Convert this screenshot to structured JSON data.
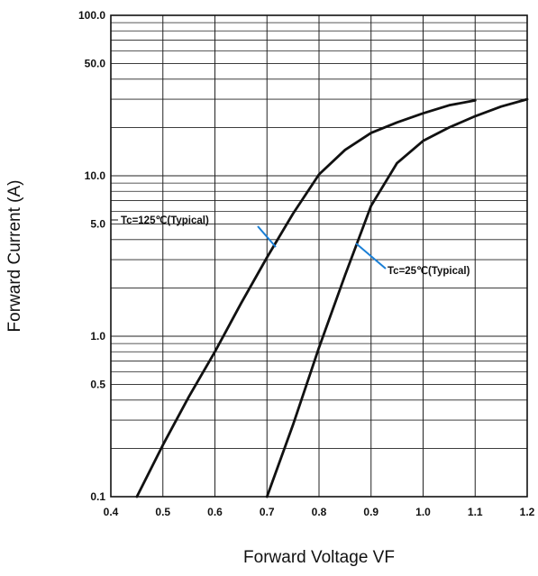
{
  "chart_data": {
    "type": "line",
    "xlabel": "Forward Voltage VF",
    "ylabel": "Forward Current (A)",
    "xlim": [
      0.4,
      1.2
    ],
    "ylim": [
      0.1,
      100
    ],
    "y_scale": "log",
    "grid": true,
    "x_ticks": [
      "0.4",
      "0.5",
      "0.6",
      "0.7",
      "0.8",
      "0.9",
      "1.0",
      "1.1",
      "1.2"
    ],
    "y_ticks": [
      {
        "value": 0.1,
        "label": "0.1"
      },
      {
        "value": 0.5,
        "label": "0.5"
      },
      {
        "value": 1,
        "label": "1.0"
      },
      {
        "value": 5,
        "label": "5.0"
      },
      {
        "value": 10,
        "label": "10.0"
      },
      {
        "value": 50,
        "label": "50.0"
      },
      {
        "value": 100,
        "label": "100.0"
      }
    ],
    "series": [
      {
        "label": "Tc=125℃(Typical)",
        "color": "#111111",
        "points": [
          [
            0.45,
            0.1
          ],
          [
            0.5,
            0.21
          ],
          [
            0.55,
            0.42
          ],
          [
            0.6,
            0.8
          ],
          [
            0.65,
            1.6
          ],
          [
            0.7,
            3.1
          ],
          [
            0.75,
            5.8
          ],
          [
            0.8,
            10.2
          ],
          [
            0.85,
            14.5
          ],
          [
            0.9,
            18.5
          ],
          [
            0.95,
            21.5
          ],
          [
            1.0,
            24.5
          ],
          [
            1.05,
            27.5
          ],
          [
            1.1,
            29.5
          ]
        ]
      },
      {
        "label": "Tc=25℃(Typical)",
        "color": "#111111",
        "points": [
          [
            0.7,
            0.1
          ],
          [
            0.75,
            0.28
          ],
          [
            0.8,
            0.85
          ],
          [
            0.85,
            2.4
          ],
          [
            0.9,
            6.5
          ],
          [
            0.95,
            12.0
          ],
          [
            1.0,
            16.5
          ],
          [
            1.05,
            20.0
          ],
          [
            1.1,
            23.5
          ],
          [
            1.15,
            27.0
          ],
          [
            1.2,
            30.0
          ]
        ]
      }
    ],
    "annotation_color": "#1a7fd6"
  }
}
